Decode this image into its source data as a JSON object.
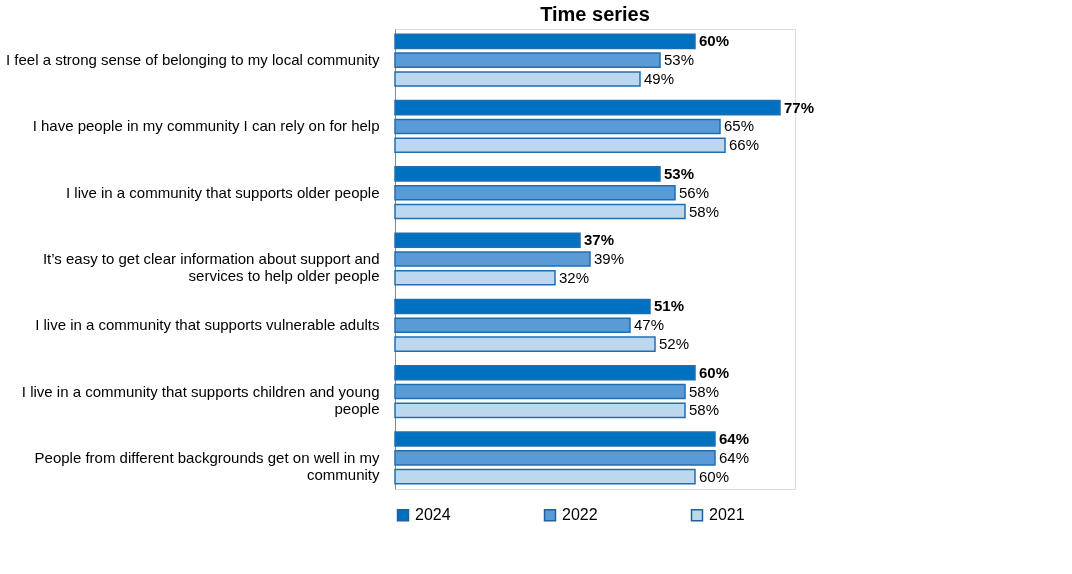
{
  "chart_data": {
    "type": "bar",
    "orientation": "horizontal",
    "title": "Time series",
    "categories": [
      "I feel a strong sense of belonging to my local community",
      "I have people in my community I can rely on for help",
      "I live in a community that supports older people",
      "It’s easy to get clear information about support and services to help older people",
      "I live in a community that supports vulnerable adults",
      "I live in a community that supports children and young people",
      "People from different backgrounds get on well in my community"
    ],
    "series": [
      {
        "name": "2024",
        "color": "#0070c0",
        "values": [
          60,
          77,
          53,
          37,
          51,
          60,
          64
        ],
        "value_labels": [
          "60%",
          "77%",
          "53%",
          "37%",
          "51%",
          "60%",
          "64%"
        ]
      },
      {
        "name": "2022",
        "color": "#5b9bd5",
        "values": [
          53,
          65,
          56,
          39,
          47,
          58,
          64
        ],
        "value_labels": [
          "53%",
          "65%",
          "56%",
          "39%",
          "47%",
          "58%",
          "64%"
        ]
      },
      {
        "name": "2021",
        "color": "#bdd7ee",
        "values": [
          49,
          66,
          58,
          32,
          52,
          58,
          60
        ],
        "value_labels": [
          "49%",
          "66%",
          "58%",
          "32%",
          "52%",
          "58%",
          "60%"
        ]
      }
    ],
    "legend": "bottom",
    "tick_labels": "y"
  }
}
